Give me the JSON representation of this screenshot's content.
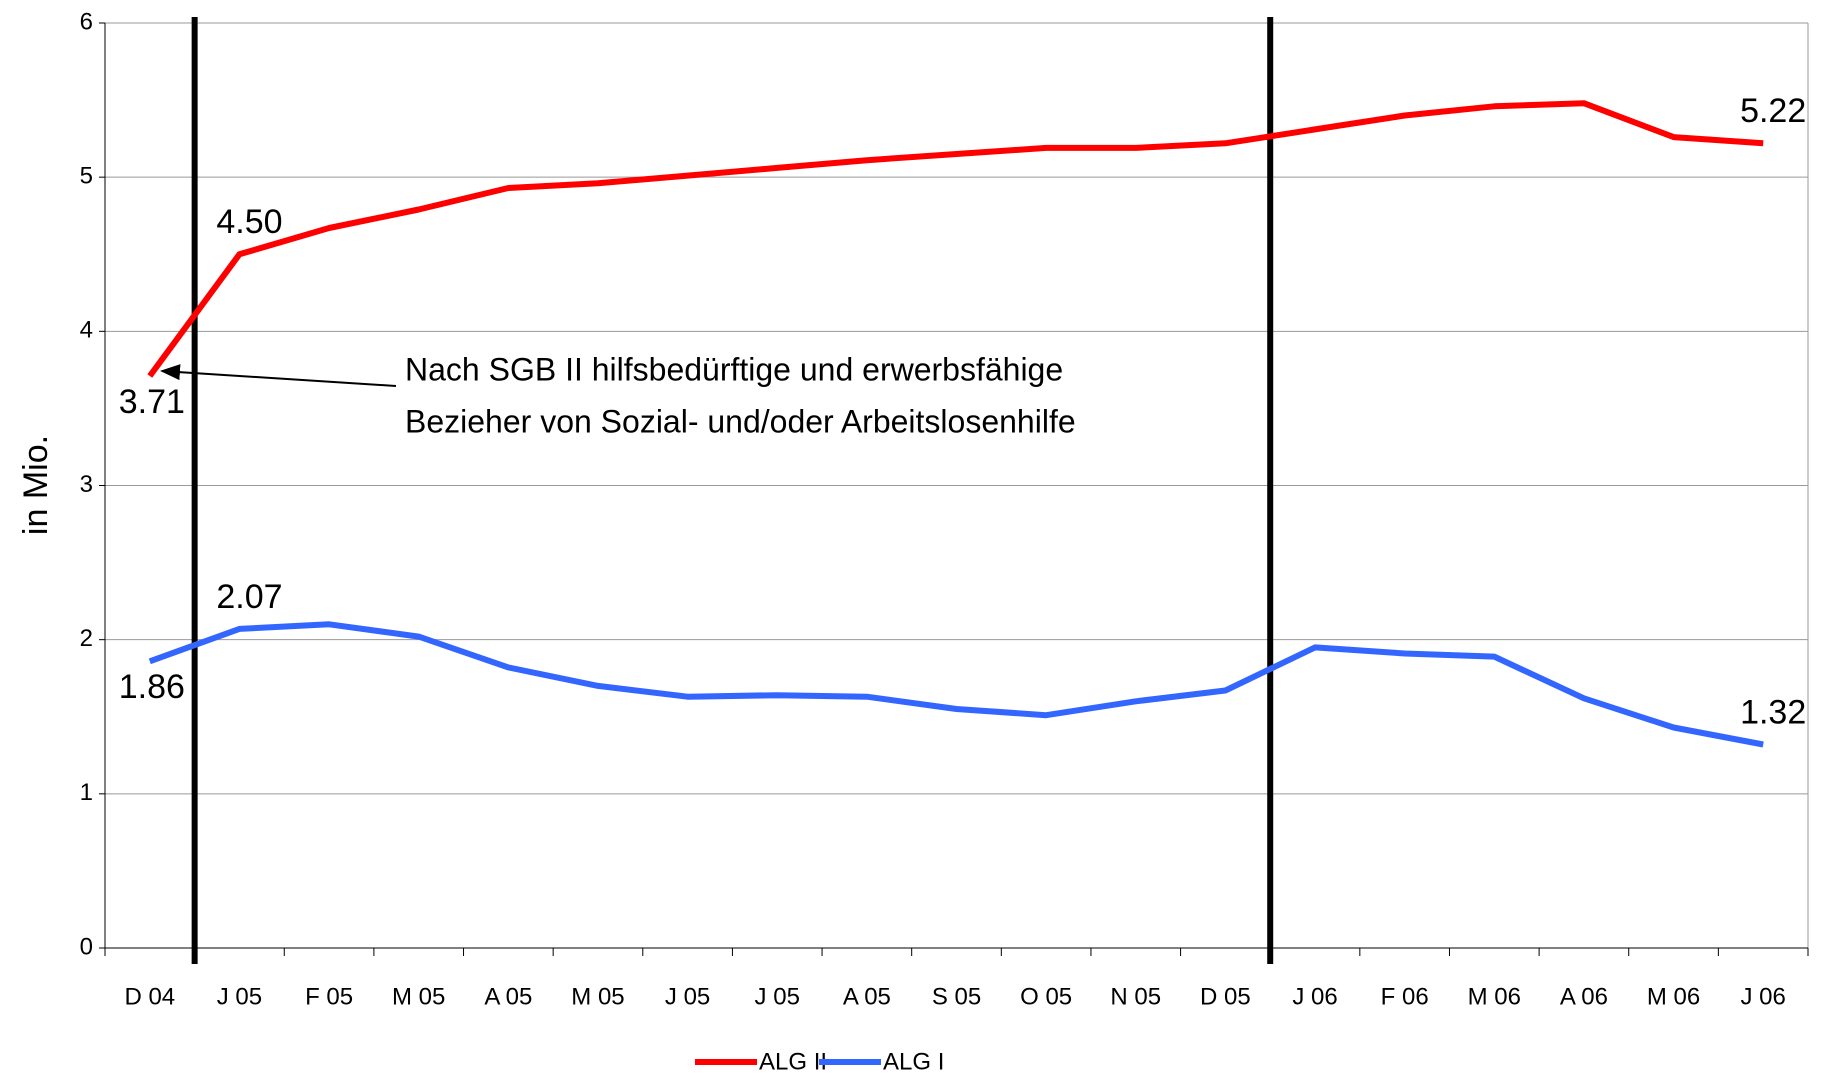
{
  "chart_data": {
    "type": "line",
    "y_label": "in Mio.",
    "annotation": [
      "Nach SGB II hilfsbedürftige und erwerbsfähige",
      "Bezieher von Sozial- und/oder Arbeitslosenhilfe"
    ],
    "categories": [
      "D 04",
      "J 05",
      "F 05",
      "M 05",
      "A 05",
      "M 05",
      "J 05",
      "J 05",
      "A 05",
      "S 05",
      "O 05",
      "N 05",
      "D 05",
      "J 06",
      "F 06",
      "M 06",
      "A 06",
      "M 06",
      "J 06"
    ],
    "series": [
      {
        "name": "ALG II",
        "color": "#ff0000",
        "values": [
          3.71,
          4.5,
          4.67,
          4.79,
          4.93,
          4.96,
          5.01,
          5.06,
          5.11,
          5.15,
          5.19,
          5.19,
          5.22,
          5.31,
          5.4,
          5.46,
          5.48,
          5.26,
          5.22
        ],
        "value_labels": [
          "3.71",
          "4.50",
          null,
          null,
          null,
          null,
          null,
          null,
          null,
          null,
          null,
          null,
          null,
          null,
          null,
          null,
          null,
          null,
          "5.22"
        ]
      },
      {
        "name": "ALG I",
        "color": "#3366ff",
        "values": [
          1.86,
          2.07,
          2.1,
          2.02,
          1.82,
          1.7,
          1.63,
          1.64,
          1.63,
          1.55,
          1.51,
          1.6,
          1.67,
          1.95,
          1.91,
          1.89,
          1.62,
          1.43,
          1.32
        ],
        "value_labels": [
          "1.86",
          "2.07",
          null,
          null,
          null,
          null,
          null,
          null,
          null,
          null,
          null,
          null,
          null,
          null,
          null,
          null,
          null,
          null,
          "1.32"
        ]
      }
    ],
    "ylim": [
      0,
      6
    ],
    "yticks": [
      0,
      1,
      2,
      3,
      4,
      5,
      6
    ],
    "grid": true,
    "legend": "bottom"
  }
}
